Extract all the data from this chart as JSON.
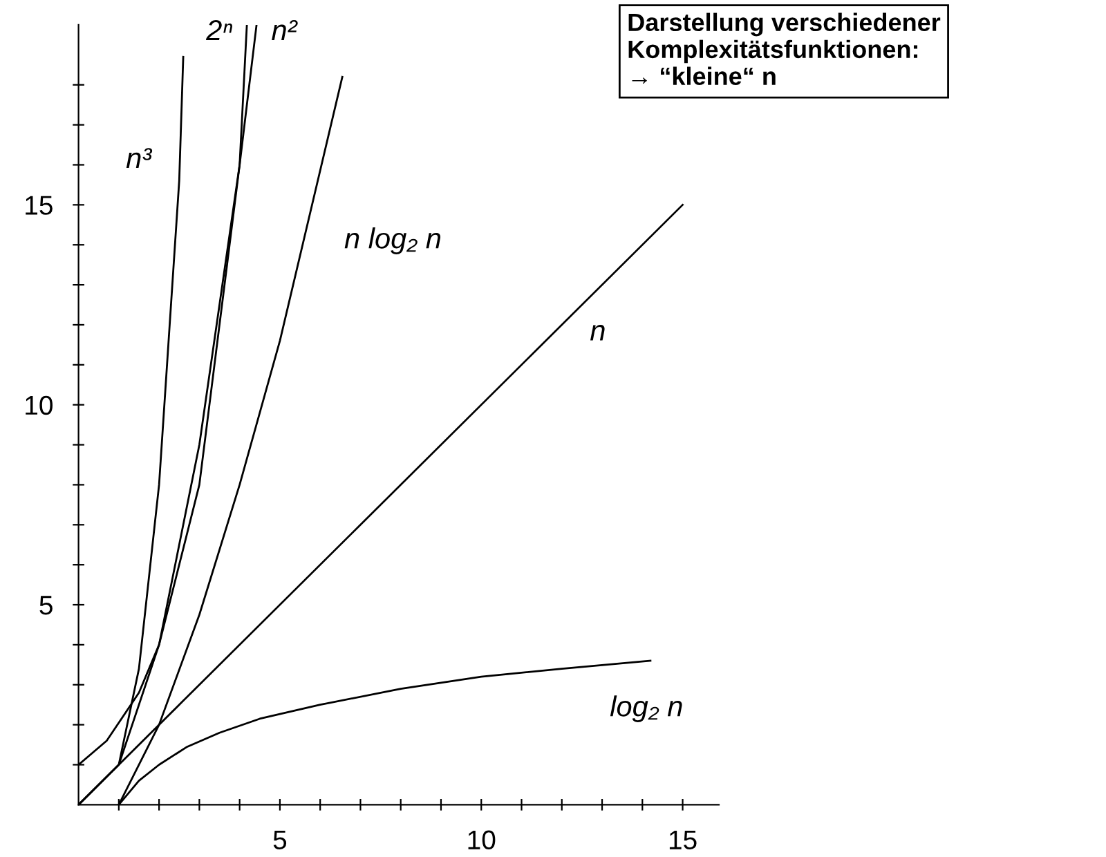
{
  "chart_data": {
    "type": "line",
    "series": [
      {
        "name": "n",
        "color": "#000000",
        "x": [
          0,
          15
        ],
        "values": [
          0,
          15
        ]
      },
      {
        "name": "log₂ n",
        "color": "#000000",
        "x": [
          1,
          1.5,
          2,
          2.7,
          3.5,
          4.5,
          6,
          8,
          10,
          12,
          14.2
        ],
        "values": [
          0,
          0.6,
          1,
          1.45,
          1.8,
          2.15,
          2.5,
          2.9,
          3.2,
          3.4,
          3.6
        ]
      },
      {
        "name": "n log₂ n",
        "color": "#000000",
        "x": [
          1,
          2,
          3,
          4,
          5,
          6.55
        ],
        "values": [
          0,
          2,
          4.75,
          8,
          11.6,
          18.2
        ]
      },
      {
        "name": "n²",
        "color": "#000000",
        "x": [
          0,
          1,
          2,
          3,
          4,
          4.42
        ],
        "values": [
          0,
          1,
          4,
          9,
          16,
          19.5
        ]
      },
      {
        "name": "2ⁿ",
        "color": "#000000",
        "x": [
          0,
          0.7,
          1.5,
          2,
          3,
          4,
          4.18
        ],
        "values": [
          1,
          1.6,
          2.8,
          4,
          8,
          16,
          19.5
        ]
      },
      {
        "name": "n³",
        "color": "#000000",
        "x": [
          0,
          1,
          1.5,
          2,
          2.5,
          2.6
        ],
        "values": [
          0,
          1,
          3.4,
          8,
          15.6,
          18.7
        ]
      }
    ],
    "annotations": [
      "Darstellung verschiedener\nKomplexitätsfunktionen:\n→ “kleine“ n"
    ],
    "xlim": [
      0,
      15.9
    ],
    "ylim": [
      0,
      19.5
    ],
    "xticks": [
      {
        "value": 1,
        "label": null
      },
      {
        "value": 2,
        "label": null
      },
      {
        "value": 3,
        "label": null
      },
      {
        "value": 4,
        "label": null
      },
      5,
      {
        "value": 6,
        "label": null
      },
      {
        "value": 7,
        "label": null
      },
      {
        "value": 8,
        "label": null
      },
      {
        "value": 9,
        "label": null
      },
      10,
      {
        "value": 11,
        "label": null
      },
      {
        "value": 12,
        "label": null
      },
      {
        "value": 13,
        "label": null
      },
      {
        "value": 14,
        "label": null
      },
      15
    ],
    "yticks": [
      {
        "value": 1,
        "label": null
      },
      {
        "value": 2,
        "label": null
      },
      {
        "value": 3,
        "label": null
      },
      {
        "value": 4,
        "label": null
      },
      5,
      {
        "value": 6,
        "label": null
      },
      {
        "value": 7,
        "label": null
      },
      {
        "value": 8,
        "label": null
      },
      {
        "value": 9,
        "label": null
      },
      10,
      {
        "value": 11,
        "label": null
      },
      {
        "value": 12,
        "label": null
      },
      {
        "value": 13,
        "label": null
      },
      {
        "value": 14,
        "label": null
      },
      15,
      {
        "value": 16,
        "label": null
      },
      {
        "value": 17,
        "label": null
      },
      {
        "value": 18,
        "label": null
      }
    ],
    "grid": false,
    "marker": "none",
    "line_style": "solid"
  }
}
